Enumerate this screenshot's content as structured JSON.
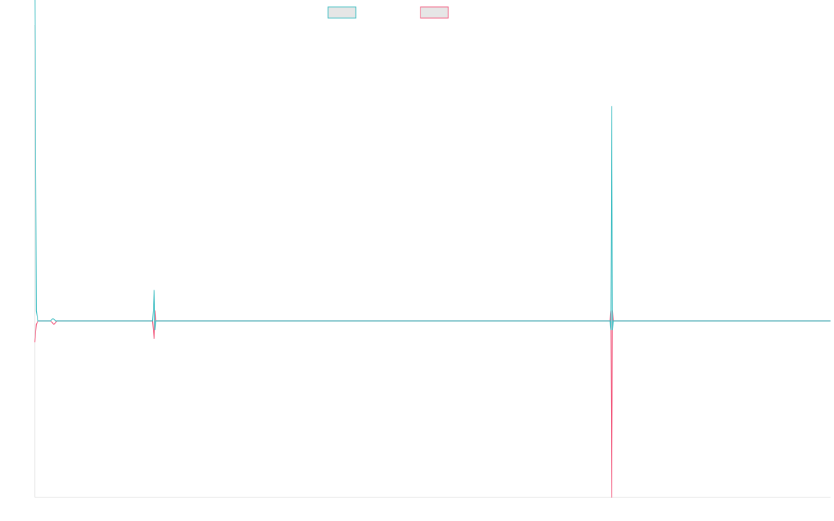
{
  "colors": {
    "teal": "#3cbdc2",
    "pink": "#f2557a",
    "legend_fill": "#e6e6e6",
    "axis": "#e0e0e0",
    "background": "#ffffff"
  },
  "legend": [
    {
      "label": "",
      "color": "#3cbdc2"
    },
    {
      "label": "",
      "color": "#f2557a"
    }
  ],
  "chart_data": {
    "type": "line",
    "title": "",
    "xlabel": "",
    "ylabel": "",
    "xlim": [
      0,
      1000
    ],
    "ylim": [
      -100,
      100
    ],
    "grid": false,
    "legend_position": "top",
    "series": [
      {
        "name": "",
        "color": "#3cbdc2",
        "x": [
          0,
          2,
          4,
          6,
          20,
          22,
          24,
          26,
          28,
          148,
          149,
          150,
          151,
          152,
          723,
          724,
          725,
          726,
          727,
          729,
          1000
        ],
        "y": [
          180,
          5,
          0,
          0,
          0,
          1,
          1,
          0,
          0,
          0,
          5,
          15,
          -5,
          0,
          0,
          -5,
          105,
          -5,
          0,
          0,
          0
        ]
      },
      {
        "name": "",
        "color": "#f2557a",
        "x": [
          0,
          2,
          4,
          6,
          20,
          22,
          24,
          26,
          28,
          148,
          149,
          150,
          151,
          152,
          723,
          724,
          725,
          726,
          727,
          729,
          1000
        ],
        "y": [
          -12,
          -2,
          0,
          0,
          0,
          -1,
          -2,
          -1,
          0,
          0,
          -5,
          -10,
          5,
          0,
          0,
          5,
          -100,
          5,
          0,
          0,
          0
        ]
      }
    ]
  }
}
